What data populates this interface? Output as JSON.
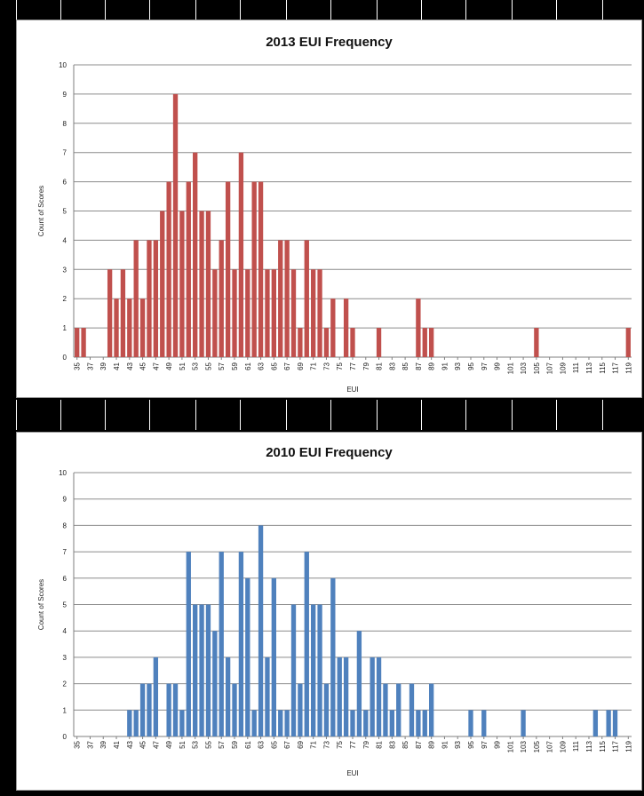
{
  "chart_data": [
    {
      "type": "bar",
      "title": "2013 EUI Frequency",
      "xlabel": "EUI",
      "ylabel": "Count of Scores",
      "ylim": [
        0,
        10
      ],
      "yticks": [
        0,
        1,
        2,
        3,
        4,
        5,
        6,
        7,
        8,
        9,
        10
      ],
      "grid": true,
      "legend": "none",
      "color": "#C0504D",
      "categories": [
        35,
        36,
        37,
        38,
        39,
        40,
        41,
        42,
        43,
        44,
        45,
        46,
        47,
        48,
        49,
        50,
        51,
        52,
        53,
        54,
        55,
        56,
        57,
        58,
        59,
        60,
        61,
        62,
        63,
        64,
        65,
        66,
        67,
        68,
        69,
        70,
        71,
        72,
        73,
        74,
        75,
        76,
        77,
        78,
        79,
        80,
        81,
        82,
        83,
        84,
        85,
        86,
        87,
        88,
        89,
        90,
        91,
        92,
        93,
        94,
        95,
        96,
        97,
        98,
        99,
        100,
        101,
        102,
        103,
        104,
        105,
        106,
        107,
        108,
        109,
        110,
        111,
        112,
        113,
        114,
        115,
        116,
        117,
        118,
        119
      ],
      "tick_labels": [
        "35",
        "37",
        "39",
        "41",
        "43",
        "45",
        "47",
        "49",
        "51",
        "53",
        "55",
        "57",
        "59",
        "61",
        "63",
        "65",
        "67",
        "69",
        "71",
        "73",
        "75",
        "77",
        "79",
        "81",
        "83",
        "85",
        "87",
        "89",
        "91",
        "93",
        "95",
        "97",
        "99",
        "101",
        "103",
        "105",
        "107",
        "109",
        "111",
        "113",
        "115",
        "117",
        "119"
      ],
      "values": [
        1,
        1,
        0,
        0,
        0,
        3,
        2,
        3,
        2,
        4,
        2,
        4,
        4,
        5,
        6,
        9,
        5,
        6,
        7,
        5,
        5,
        3,
        4,
        6,
        3,
        7,
        3,
        6,
        6,
        3,
        3,
        4,
        4,
        3,
        1,
        4,
        3,
        3,
        1,
        2,
        0,
        2,
        1,
        0,
        0,
        0,
        1,
        0,
        0,
        0,
        0,
        0,
        2,
        1,
        1,
        0,
        0,
        0,
        0,
        0,
        0,
        0,
        0,
        0,
        0,
        0,
        0,
        0,
        0,
        0,
        1,
        0,
        0,
        0,
        0,
        0,
        0,
        0,
        0,
        0,
        0,
        0,
        0,
        0,
        1
      ]
    },
    {
      "type": "bar",
      "title": "2010 EUI Frequency",
      "xlabel": "EUI",
      "ylabel": "Count of Scores",
      "ylim": [
        0,
        10
      ],
      "yticks": [
        0,
        1,
        2,
        3,
        4,
        5,
        6,
        7,
        8,
        9,
        10
      ],
      "grid": true,
      "legend": "none",
      "color": "#4F81BD",
      "categories": [
        35,
        36,
        37,
        38,
        39,
        40,
        41,
        42,
        43,
        44,
        45,
        46,
        47,
        48,
        49,
        50,
        51,
        52,
        53,
        54,
        55,
        56,
        57,
        58,
        59,
        60,
        61,
        62,
        63,
        64,
        65,
        66,
        67,
        68,
        69,
        70,
        71,
        72,
        73,
        74,
        75,
        76,
        77,
        78,
        79,
        80,
        81,
        82,
        83,
        84,
        85,
        86,
        87,
        88,
        89,
        90,
        91,
        92,
        93,
        94,
        95,
        96,
        97,
        98,
        99,
        100,
        101,
        102,
        103,
        104,
        105,
        106,
        107,
        108,
        109,
        110,
        111,
        112,
        113,
        114,
        115,
        116,
        117,
        118,
        119
      ],
      "tick_labels": [
        "35",
        "37",
        "39",
        "41",
        "43",
        "45",
        "47",
        "49",
        "51",
        "53",
        "55",
        "57",
        "59",
        "61",
        "63",
        "65",
        "67",
        "69",
        "71",
        "73",
        "75",
        "77",
        "79",
        "81",
        "83",
        "85",
        "87",
        "89",
        "91",
        "93",
        "95",
        "97",
        "99",
        "101",
        "103",
        "105",
        "107",
        "109",
        "111",
        "113",
        "115",
        "117",
        "119"
      ],
      "values": [
        0,
        0,
        0,
        0,
        0,
        0,
        0,
        0,
        1,
        1,
        2,
        2,
        3,
        0,
        2,
        2,
        1,
        7,
        5,
        5,
        5,
        4,
        7,
        3,
        2,
        7,
        6,
        1,
        8,
        3,
        6,
        1,
        1,
        5,
        2,
        7,
        5,
        5,
        2,
        6,
        3,
        3,
        1,
        4,
        1,
        3,
        3,
        2,
        1,
        2,
        0,
        2,
        1,
        1,
        2,
        0,
        0,
        0,
        0,
        0,
        1,
        0,
        1,
        0,
        0,
        0,
        0,
        0,
        1,
        0,
        0,
        0,
        0,
        0,
        0,
        0,
        0,
        0,
        0,
        1,
        0,
        1,
        1,
        0,
        0
      ]
    }
  ]
}
